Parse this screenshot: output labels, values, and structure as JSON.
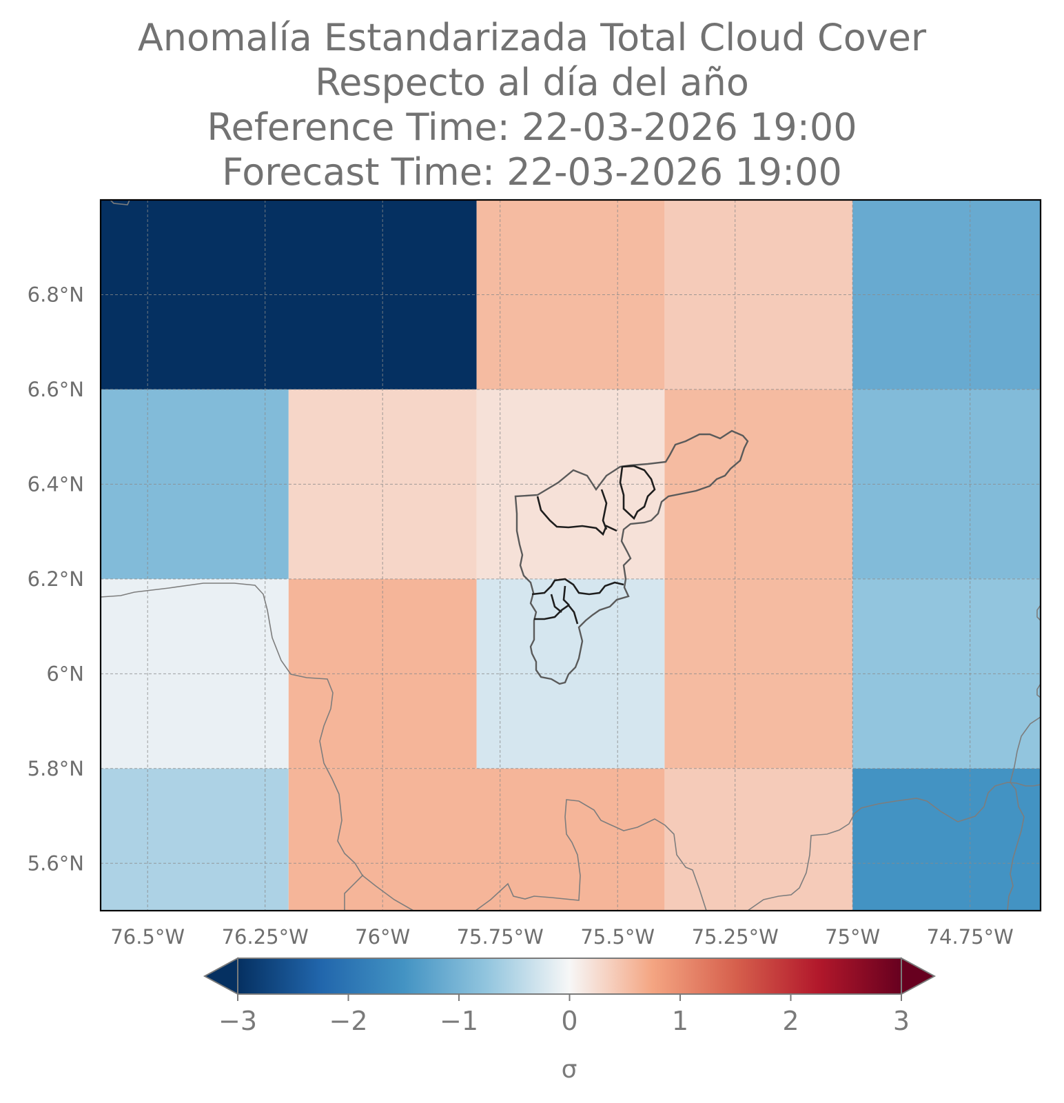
{
  "title": {
    "line1": "Anomalía Estandarizada Total Cloud Cover",
    "line2": "Respecto al día del año",
    "line3": "Reference Time: 22-03-2026 19:00",
    "line4": "Forecast Time: 22-03-2026 19:00"
  },
  "chart_data": {
    "type": "heatmap",
    "variable": "Total Cloud Cover",
    "x_range": [
      -76.6,
      -74.6
    ],
    "y_range": [
      5.5,
      7.0
    ],
    "grid": true,
    "x_ticks": [
      {
        "value": -76.5,
        "label": "76.5°W"
      },
      {
        "value": -76.25,
        "label": "76.25°W"
      },
      {
        "value": -76.0,
        "label": "76°W"
      },
      {
        "value": -75.75,
        "label": "75.75°W"
      },
      {
        "value": -75.5,
        "label": "75.5°W"
      },
      {
        "value": -75.25,
        "label": "75.25°W"
      },
      {
        "value": -75.0,
        "label": "75°W"
      },
      {
        "value": -74.75,
        "label": "74.75°W"
      }
    ],
    "y_ticks": [
      {
        "value": 5.6,
        "label": "5.6°N"
      },
      {
        "value": 5.8,
        "label": "5.8°N"
      },
      {
        "value": 6.0,
        "label": "6°N"
      },
      {
        "value": 6.2,
        "label": "6.2°N"
      },
      {
        "value": 6.4,
        "label": "6.4°N"
      },
      {
        "value": 6.6,
        "label": "6.6°N"
      },
      {
        "value": 6.8,
        "label": "6.8°N"
      }
    ],
    "cells": [
      {
        "lon": [
          -76.6,
          -75.8
        ],
        "lat": [
          6.6,
          7.0
        ],
        "value": -3.0
      },
      {
        "lon": [
          -75.8,
          -75.4
        ],
        "lat": [
          6.6,
          7.0
        ],
        "value": 0.55
      },
      {
        "lon": [
          -75.4,
          -75.0
        ],
        "lat": [
          6.6,
          7.0
        ],
        "value": 0.4
      },
      {
        "lon": [
          -75.0,
          -74.6
        ],
        "lat": [
          6.6,
          7.0
        ],
        "value": -1.15
      },
      {
        "lon": [
          -76.6,
          -76.2
        ],
        "lat": [
          6.2,
          6.6
        ],
        "value": -0.9
      },
      {
        "lon": [
          -76.2,
          -75.8
        ],
        "lat": [
          6.2,
          6.6
        ],
        "value": 0.3
      },
      {
        "lon": [
          -75.8,
          -75.4
        ],
        "lat": [
          6.2,
          6.6
        ],
        "value": 0.2
      },
      {
        "lon": [
          -75.4,
          -75.0
        ],
        "lat": [
          6.2,
          6.6
        ],
        "value": 0.55
      },
      {
        "lon": [
          -75.0,
          -74.6
        ],
        "lat": [
          6.2,
          6.6
        ],
        "value": -0.9
      },
      {
        "lon": [
          -76.6,
          -76.2
        ],
        "lat": [
          5.8,
          6.2
        ],
        "value": -0.1
      },
      {
        "lon": [
          -76.2,
          -75.8
        ],
        "lat": [
          5.8,
          6.2
        ],
        "value": 0.6
      },
      {
        "lon": [
          -75.8,
          -75.4
        ],
        "lat": [
          5.8,
          6.2
        ],
        "value": -0.25
      },
      {
        "lon": [
          -75.4,
          -75.0
        ],
        "lat": [
          5.8,
          6.2
        ],
        "value": 0.55
      },
      {
        "lon": [
          -75.0,
          -74.6
        ],
        "lat": [
          5.8,
          6.2
        ],
        "value": -0.75
      },
      {
        "lon": [
          -76.6,
          -76.2
        ],
        "lat": [
          5.5,
          5.8
        ],
        "value": -0.55
      },
      {
        "lon": [
          -76.2,
          -75.4
        ],
        "lat": [
          5.5,
          5.8
        ],
        "value": 0.6
      },
      {
        "lon": [
          -75.4,
          -75.0
        ],
        "lat": [
          5.5,
          5.8
        ],
        "value": 0.4
      },
      {
        "lon": [
          -75.0,
          -74.6
        ],
        "lat": [
          5.5,
          5.8
        ],
        "value": -1.5
      }
    ],
    "colorbar": {
      "cmap": "RdBu_r",
      "range": [
        -3,
        3
      ],
      "extend": "both",
      "ticks": [
        {
          "value": -3,
          "label": "−3"
        },
        {
          "value": -2,
          "label": "−2"
        },
        {
          "value": -1,
          "label": "−1"
        },
        {
          "value": 0,
          "label": "0"
        },
        {
          "value": 1,
          "label": "1"
        },
        {
          "value": 2,
          "label": "2"
        },
        {
          "value": 3,
          "label": "3"
        }
      ],
      "label": "σ"
    }
  }
}
